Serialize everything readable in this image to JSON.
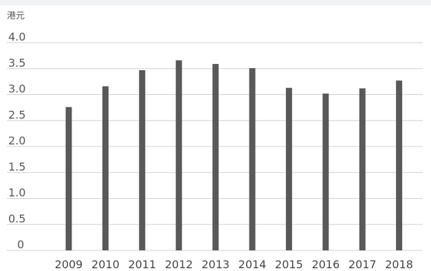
{
  "chart_data": {
    "type": "bar",
    "unit_label": "港元",
    "categories": [
      "2009",
      "2010",
      "2011",
      "2012",
      "2013",
      "2014",
      "2015",
      "2016",
      "2017",
      "2018"
    ],
    "values": [
      2.76,
      3.16,
      3.47,
      3.66,
      3.59,
      3.51,
      3.13,
      3.02,
      3.12,
      3.27
    ],
    "ylim": [
      0,
      4.0
    ],
    "yticks": [
      "0",
      "0.5",
      "1.0",
      "1.5",
      "2.0",
      "2.5",
      "3.0",
      "3.5",
      "4.0"
    ],
    "grid": true,
    "colors": {
      "bar": "#595959",
      "grid": "#d0d0d0",
      "top_band": "#f1f3f5"
    }
  }
}
